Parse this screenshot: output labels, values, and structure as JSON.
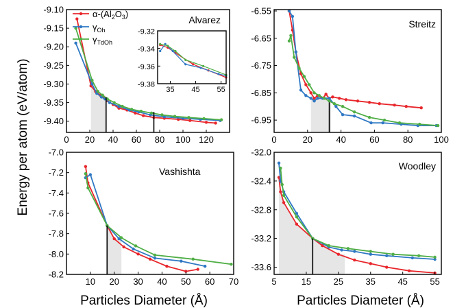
{
  "figure": {
    "ylabel": "Energy per atom (eV/atom)",
    "xlabel": "Particles Diameter (Å)"
  },
  "legend": {
    "entries": [
      {
        "label": "α-(Al",
        "sub1": "2",
        "mid": "O",
        "sub2": "3",
        "end": ")",
        "color": "#e8262b"
      },
      {
        "label": "γ",
        "sub1": "Oh",
        "mid": "",
        "sub2": "",
        "end": "",
        "color": "#2f78c4"
      },
      {
        "label": "γ",
        "sub1": "TdOh",
        "mid": "",
        "sub2": "",
        "end": "",
        "color": "#4fae45"
      }
    ]
  },
  "colors": {
    "alpha": "#e8262b",
    "gOh": "#2f78c4",
    "gTdOh": "#4fae45",
    "shade": "#e6e6e6"
  },
  "chart_data": [
    {
      "type": "line",
      "name": "Alvarez",
      "xlim": [
        0,
        140
      ],
      "ylim": [
        -9.43,
        -9.1
      ],
      "xticks": [
        0,
        20,
        40,
        60,
        80,
        100,
        120
      ],
      "yticks": [
        -9.1,
        -9.15,
        -9.2,
        -9.25,
        -9.3,
        -9.35,
        -9.4
      ],
      "ytick_labels": [
        "-9.10",
        "-9.15",
        "-9.20",
        "-9.25",
        "-9.30",
        "-9.35",
        "-9.40"
      ],
      "shade": [
        21,
        34
      ],
      "vlines": [
        [
          34,
          -9.335
        ],
        [
          75,
          -9.375
        ]
      ],
      "series": [
        {
          "key": "alpha",
          "x": [
            9,
            21,
            25,
            29,
            32,
            35,
            40,
            45,
            52,
            59,
            66,
            75,
            84,
            96,
            106,
            120,
            128
          ],
          "y": [
            -9.125,
            -9.305,
            -9.32,
            -9.33,
            -9.335,
            -9.345,
            -9.355,
            -9.365,
            -9.37,
            -9.378,
            -9.385,
            -9.39,
            -9.392,
            -9.395,
            -9.398,
            -9.403,
            -9.405
          ]
        },
        {
          "key": "gOh",
          "x": [
            8,
            22,
            26,
            30,
            33,
            37,
            45,
            54,
            62,
            72,
            84,
            100,
            115,
            132
          ],
          "y": [
            -9.19,
            -9.3,
            -9.325,
            -9.335,
            -9.34,
            -9.35,
            -9.36,
            -9.37,
            -9.375,
            -9.383,
            -9.388,
            -9.392,
            -9.395,
            -9.398
          ]
        },
        {
          "key": "gTdOh",
          "x": [
            8,
            22,
            27,
            31,
            35,
            41,
            48,
            56,
            64,
            73,
            82,
            93,
            105,
            118,
            133
          ],
          "y": [
            -9.15,
            -9.29,
            -9.32,
            -9.33,
            -9.34,
            -9.35,
            -9.36,
            -9.368,
            -9.373,
            -9.378,
            -9.383,
            -9.387,
            -9.39,
            -9.393,
            -9.396
          ]
        }
      ],
      "label": "Alvarez",
      "inset": {
        "xlim": [
          30,
          57
        ],
        "ylim": [
          -9.38,
          -9.32
        ],
        "xticks": [
          35,
          45,
          55
        ],
        "yticks": [
          -9.32,
          -9.34,
          -9.36,
          -9.38
        ],
        "ytick_labels": [
          "-9.32",
          "-9.34",
          "-9.36",
          "-9.38"
        ],
        "series": [
          {
            "key": "alpha",
            "x": [
              31,
              34,
              37,
              44,
              50,
              57
            ],
            "y": [
              -9.336,
              -9.339,
              -9.345,
              -9.358,
              -9.365,
              -9.373
            ]
          },
          {
            "key": "gOh",
            "x": [
              31,
              33,
              36,
              41,
              47,
              54,
              57
            ],
            "y": [
              -9.343,
              -9.335,
              -9.343,
              -9.358,
              -9.362,
              -9.369,
              -9.371
            ]
          },
          {
            "key": "gTdOh",
            "x": [
              31,
              34,
              37,
              41,
              48,
              57
            ],
            "y": [
              -9.335,
              -9.337,
              -9.343,
              -9.353,
              -9.36,
              -9.37
            ]
          }
        ]
      }
    },
    {
      "type": "line",
      "name": "Streitz",
      "xlim": [
        0,
        100
      ],
      "ylim": [
        -6.995,
        -6.545
      ],
      "xticks": [
        0,
        20,
        40,
        60,
        80,
        100
      ],
      "yticks": [
        -6.55,
        -6.65,
        -6.75,
        -6.85,
        -6.95
      ],
      "ytick_labels": [
        "-6.55",
        "-6.65",
        "-6.75",
        "-6.85",
        "-6.95"
      ],
      "shade": [
        22,
        34
      ],
      "vlines": [
        [
          33,
          -6.885
        ]
      ],
      "series": [
        {
          "key": "alpha",
          "x": [
            9,
            11,
            13,
            16,
            19,
            22,
            24,
            26,
            29,
            31,
            33,
            35,
            39,
            43,
            50,
            57,
            63,
            72,
            79,
            88
          ],
          "y": [
            -6.55,
            -6.62,
            -6.7,
            -6.78,
            -6.82,
            -6.85,
            -6.87,
            -6.86,
            -6.87,
            -6.855,
            -6.87,
            -6.865,
            -6.87,
            -6.875,
            -6.88,
            -6.885,
            -6.89,
            -6.895,
            -6.9,
            -6.905
          ]
        },
        {
          "key": "gOh",
          "x": [
            9,
            11,
            13,
            16,
            19,
            22,
            24,
            26,
            29,
            33,
            37,
            41,
            48,
            58,
            65,
            76,
            86,
            97
          ],
          "y": [
            -6.55,
            -6.57,
            -6.7,
            -6.84,
            -6.86,
            -6.87,
            -6.88,
            -6.87,
            -6.87,
            -6.87,
            -6.9,
            -6.93,
            -6.935,
            -6.96,
            -6.96,
            -6.965,
            -6.97,
            -6.97
          ]
        },
        {
          "key": "gTdOh",
          "x": [
            9,
            10,
            12,
            15,
            18,
            21,
            24,
            27,
            30,
            33,
            36,
            41,
            48,
            57,
            66,
            75,
            87,
            98
          ],
          "y": [
            -6.66,
            -6.64,
            -6.72,
            -6.76,
            -6.79,
            -6.82,
            -6.85,
            -6.86,
            -6.87,
            -6.88,
            -6.89,
            -6.9,
            -6.92,
            -6.94,
            -6.95,
            -6.96,
            -6.965,
            -6.97
          ]
        }
      ],
      "label": "Streitz"
    },
    {
      "type": "line",
      "name": "Vashishta",
      "xlim": [
        0,
        70
      ],
      "ylim": [
        -8.2,
        -7.0
      ],
      "xticks": [
        10,
        20,
        30,
        40,
        50,
        60,
        70
      ],
      "yticks": [
        -7.0,
        -7.2,
        -7.4,
        -7.6,
        -7.8,
        -8.0,
        -8.2
      ],
      "ytick_labels": [
        "-7.0",
        "-7.2",
        "-7.4",
        "-7.6",
        "-7.8",
        "-8.0",
        "-8.2"
      ],
      "shade": [
        17,
        23
      ],
      "vlines": [
        [
          17,
          -7.72
        ]
      ],
      "series": [
        {
          "key": "alpha",
          "x": [
            8,
            9,
            17,
            20,
            24,
            30,
            35,
            42,
            50,
            55
          ],
          "y": [
            -7.14,
            -7.3,
            -7.72,
            -7.85,
            -7.93,
            -8.0,
            -8.05,
            -8.12,
            -8.17,
            -8.15
          ]
        },
        {
          "key": "gOh",
          "x": [
            8,
            10,
            17,
            22,
            28,
            37,
            48,
            58
          ],
          "y": [
            -7.25,
            -7.22,
            -7.72,
            -7.85,
            -7.95,
            -8.04,
            -8.07,
            -8.12
          ]
        },
        {
          "key": "gTdOh",
          "x": [
            8,
            9,
            17,
            23,
            29,
            37,
            53,
            69
          ],
          "y": [
            -7.21,
            -7.35,
            -7.72,
            -7.84,
            -7.92,
            -8.01,
            -8.05,
            -8.1
          ]
        }
      ],
      "label": "Vashishta"
    },
    {
      "type": "line",
      "name": "Woodley",
      "xlim": [
        5,
        57
      ],
      "ylim": [
        -33.7,
        -32.0
      ],
      "xticks": [
        5,
        15,
        25,
        35,
        45,
        55
      ],
      "yticks": [
        -32.0,
        -32.4,
        -32.8,
        -33.2,
        -33.6
      ],
      "ytick_labels": [
        "-32.0",
        "-32.4",
        "-32.8",
        "-33.2",
        "-33.6"
      ],
      "shade": [
        6.5,
        27
      ],
      "vlines": [
        [
          17,
          -33.2
        ]
      ],
      "series": [
        {
          "key": "alpha",
          "x": [
            6.5,
            7,
            8,
            12,
            17,
            20,
            25,
            30,
            35,
            40,
            47,
            55
          ],
          "y": [
            -32.35,
            -32.55,
            -32.7,
            -33.0,
            -33.2,
            -33.3,
            -33.42,
            -33.5,
            -33.55,
            -33.6,
            -33.65,
            -33.68
          ]
        },
        {
          "key": "gOh",
          "x": [
            6.5,
            7,
            8,
            12,
            17,
            22,
            26,
            30,
            35,
            40,
            48,
            55
          ],
          "y": [
            -32.15,
            -32.4,
            -32.55,
            -32.85,
            -33.2,
            -33.32,
            -33.36,
            -33.38,
            -33.42,
            -33.44,
            -33.47,
            -33.49
          ]
        },
        {
          "key": "gTdOh",
          "x": [
            7,
            7.5,
            8,
            12,
            17,
            22,
            28,
            35,
            42,
            50,
            55
          ],
          "y": [
            -32.22,
            -32.45,
            -32.6,
            -32.9,
            -33.2,
            -33.3,
            -33.34,
            -33.38,
            -33.42,
            -33.44,
            -33.46
          ]
        }
      ],
      "label": "Woodley"
    }
  ]
}
